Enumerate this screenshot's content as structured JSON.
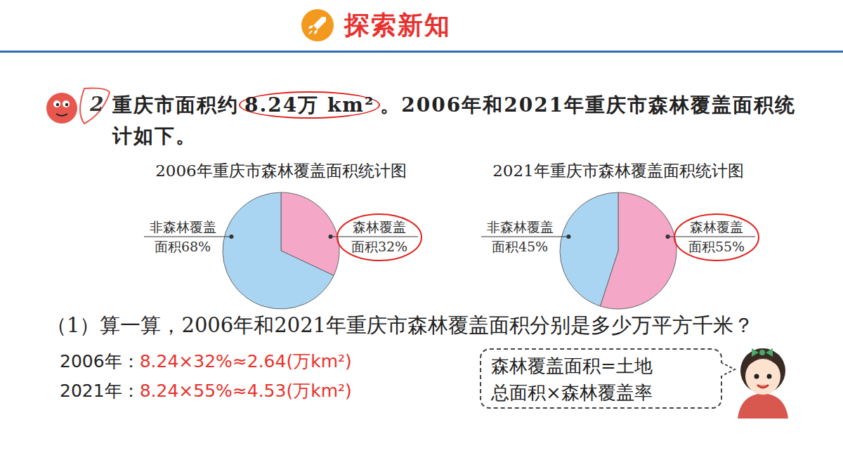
{
  "header": {
    "title": "探索新知"
  },
  "problem": {
    "number": "2",
    "text_before": "重庆市面积约",
    "highlight": "8.24万 km²",
    "text_after": "。2006年和2021年重庆市森林覆盖面积统计如下。"
  },
  "chart_data": [
    {
      "type": "pie",
      "title": "2006年重庆市森林覆盖面积统计图",
      "categories": [
        "森林覆盖面积",
        "非森林覆盖面积"
      ],
      "values": [
        32,
        68
      ],
      "value_labels": [
        "32%",
        "68%"
      ],
      "colors": [
        "#f4a7c7",
        "#a9d5f3"
      ],
      "data_labels": true
    },
    {
      "type": "pie",
      "title": "2021年重庆市森林覆盖面积统计图",
      "categories": [
        "森林覆盖面积",
        "非森林覆盖面积"
      ],
      "values": [
        55,
        45
      ],
      "value_labels": [
        "55%",
        "45%"
      ],
      "colors": [
        "#f4a7c7",
        "#a9d5f3"
      ],
      "data_labels": true
    }
  ],
  "question": {
    "text": "（1）算一算，2006年和2021年重庆市森林覆盖面积分别是多少万平方千米？",
    "answers": [
      {
        "label": "2006年：",
        "work": "8.24×32%≈2.64(万km²)"
      },
      {
        "label": "2021年：",
        "work": "8.24×55%≈4.53(万km²)"
      }
    ]
  },
  "tip": {
    "text": "森林覆盖面积=土地总面积×森林覆盖率"
  }
}
